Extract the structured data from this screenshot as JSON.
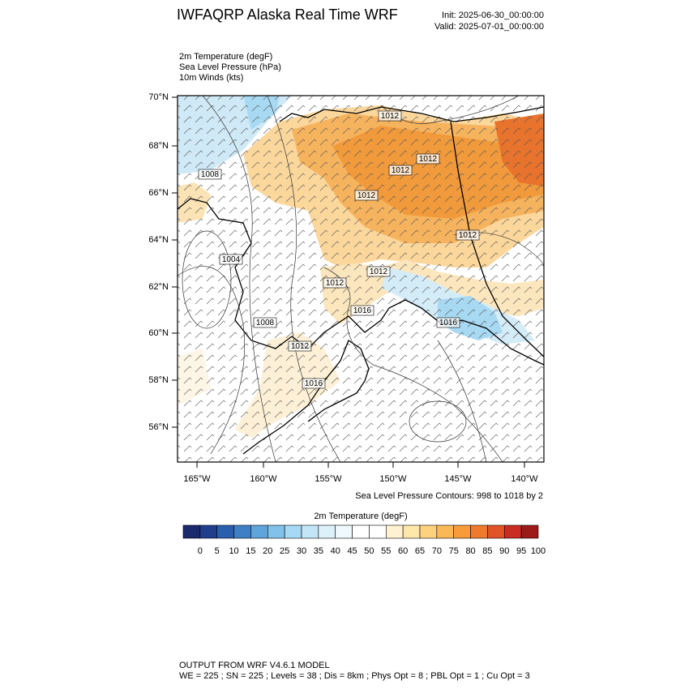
{
  "header": {
    "title": "IWFAQRP Alaska Real Time WRF",
    "init": "Init: 2025-06-30_00:00:00",
    "valid": "Valid: 2025-07-01_00:00:00"
  },
  "fields": [
    "2m Temperature   (degF)",
    "Sea Level Pressure   (hPa)",
    "10m Winds   (kts)"
  ],
  "map": {
    "lat_labels": [
      "70°N",
      "68°N",
      "66°N",
      "64°N",
      "62°N",
      "60°N",
      "58°N",
      "56°N"
    ],
    "lon_labels": [
      "165°W",
      "160°W",
      "155°W",
      "150°W",
      "145°W",
      "140°W"
    ],
    "contour_labels": [
      "1012",
      "1012",
      "1012",
      "1008",
      "1012",
      "1012",
      "1004",
      "1012",
      "1012",
      "1016",
      "1008",
      "1016",
      "1012",
      "1016"
    ]
  },
  "contour_note": "Sea Level Pressure Contours: 998 to 1018 by 2",
  "colorbar": {
    "title": "2m Temperature  (degF)",
    "colors": [
      "#1a2a6c",
      "#1f3e8c",
      "#2a5fae",
      "#3f80c5",
      "#5fa4da",
      "#80c2ea",
      "#a5d9f4",
      "#c3e6f7",
      "#dcf1fa",
      "#eef8fd",
      "#ffffff",
      "#ffffff",
      "#fff2d2",
      "#fee7ab",
      "#fdd27f",
      "#fbb856",
      "#f79c3a",
      "#ef7a2e",
      "#e25327",
      "#c92c23",
      "#9e1a1a"
    ],
    "labels": [
      0,
      5,
      10,
      15,
      20,
      25,
      30,
      35,
      40,
      45,
      50,
      55,
      60,
      65,
      70,
      75,
      80,
      85,
      90,
      95,
      100
    ]
  },
  "footer": [
    "OUTPUT FROM WRF V4.6.1 MODEL",
    "WE = 225 ; SN = 225 ; Levels = 38 ; Dis = 8km ; Phys Opt = 8 ; PBL Opt = 1 ; Cu Opt = 3"
  ]
}
